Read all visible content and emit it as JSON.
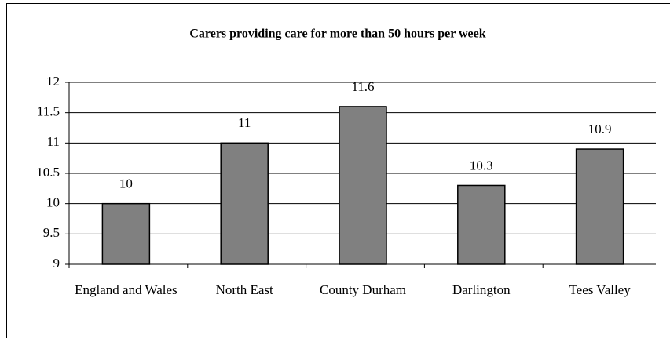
{
  "chart_data": {
    "type": "bar",
    "title": "Carers providing care for more than 50 hours per week",
    "categories": [
      "England and Wales",
      "North East",
      "County Durham",
      "Darlington",
      "Tees Valley"
    ],
    "values": [
      10,
      11,
      11.6,
      10.3,
      10.9
    ],
    "color": "#808080",
    "ylim": [
      9,
      12
    ],
    "yticks": [
      9,
      9.5,
      10,
      10.5,
      11,
      11.5,
      12
    ],
    "grid": true
  }
}
